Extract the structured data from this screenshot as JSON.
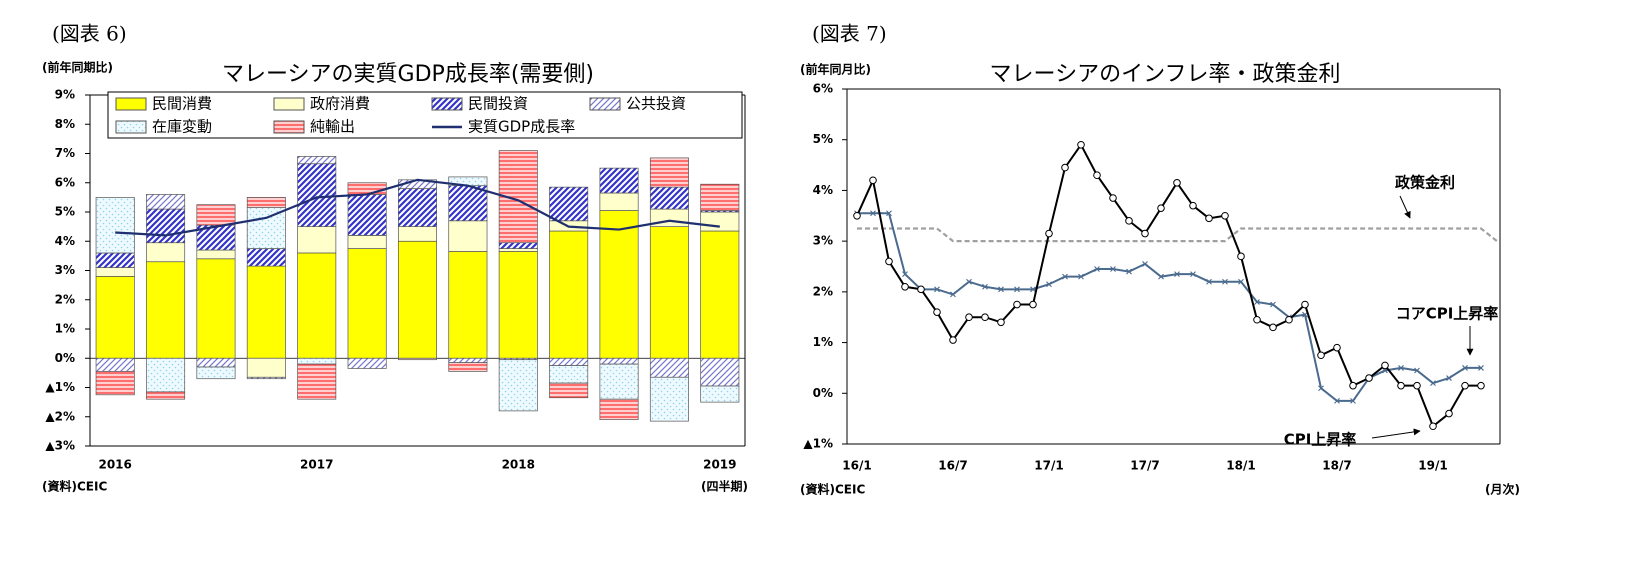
{
  "chart_data": [
    {
      "type": "bar",
      "figure_label": "(図表 6)",
      "title": "マレーシアの実質GDP成長率(需要側)",
      "unit_note": "(前年同期比)",
      "source": "(資料)CEIC",
      "x_note": "(四半期)",
      "stacked": true,
      "legend": "top",
      "categories": [
        "2016",
        null,
        null,
        null,
        "2017",
        null,
        null,
        null,
        "2018",
        null,
        null,
        null,
        "2019"
      ],
      "ylim": [
        -3,
        9
      ],
      "yticks": [
        {
          "value": 9,
          "label": "9%"
        },
        {
          "value": 8,
          "label": "8%"
        },
        {
          "value": 7,
          "label": "7%"
        },
        {
          "value": 6,
          "label": "6%"
        },
        {
          "value": 5,
          "label": "5%"
        },
        {
          "value": 4,
          "label": "4%"
        },
        {
          "value": 3,
          "label": "3%"
        },
        {
          "value": 2,
          "label": "2%"
        },
        {
          "value": 1,
          "label": "1%"
        },
        {
          "value": 0,
          "label": "0%"
        },
        {
          "value": -1,
          "label": "▲1%"
        },
        {
          "value": -2,
          "label": "▲2%"
        },
        {
          "value": -3,
          "label": "▲3%"
        }
      ],
      "series": [
        {
          "name": "民間消費",
          "type": "bar",
          "color": "#ffff00",
          "hatch": "none",
          "values": [
            2.8,
            3.3,
            3.4,
            3.15,
            3.6,
            3.75,
            4.0,
            3.65,
            3.65,
            4.35,
            5.05,
            4.5,
            4.35
          ]
        },
        {
          "name": "政府消費",
          "type": "bar",
          "color": "#ffffcc",
          "hatch": "none",
          "values": [
            0.3,
            0.65,
            0.3,
            -0.65,
            0.9,
            0.45,
            0.5,
            1.05,
            0.1,
            0.35,
            0.6,
            0.6,
            0.65
          ]
        },
        {
          "name": "民間投資",
          "type": "bar",
          "color": "#3333cc",
          "hatch": "diagonal",
          "values": [
            0.5,
            1.15,
            0.85,
            0.6,
            2.15,
            1.4,
            1.3,
            1.2,
            0.2,
            1.15,
            0.85,
            0.75,
            0.05
          ]
        },
        {
          "name": "公共投資",
          "type": "bar",
          "color": "#7777cc",
          "hatch": "diagonal-thin",
          "values": [
            -0.45,
            0.5,
            -0.3,
            -0.05,
            0.25,
            -0.35,
            0.3,
            -0.15,
            -0.05,
            -0.25,
            -0.2,
            -0.65,
            -0.95
          ]
        },
        {
          "name": "在庫変動",
          "type": "bar",
          "color": "#8fd3e8",
          "hatch": "dots",
          "values": [
            1.9,
            -1.15,
            -0.4,
            1.4,
            -0.2,
            0,
            0,
            0.3,
            -1.75,
            -0.6,
            -1.2,
            -1.5,
            -0.55
          ]
        },
        {
          "name": "純輸出",
          "type": "bar",
          "color": "#ff5555",
          "hatch": "horizontal",
          "values": [
            -0.8,
            -0.25,
            0.7,
            0.35,
            -1.2,
            0.4,
            -0.05,
            -0.3,
            3.15,
            -0.5,
            -0.7,
            1.0,
            0.9
          ]
        },
        {
          "name": "実質GDP成長率",
          "type": "line",
          "color": "#1f2f6f",
          "values": [
            4.3,
            4.2,
            4.5,
            4.8,
            5.5,
            5.6,
            6.1,
            5.9,
            5.4,
            4.5,
            4.4,
            4.7,
            4.5
          ]
        }
      ]
    },
    {
      "type": "line",
      "figure_label": "(図表 7)",
      "title": "マレーシアのインフレ率・政策金利",
      "unit_note": "(前年同月比)",
      "source": "(資料)CEIC",
      "x_note": "(月次)",
      "categories": [
        "16/1",
        null,
        null,
        null,
        null,
        null,
        "16/7",
        null,
        null,
        null,
        null,
        null,
        "17/1",
        null,
        null,
        null,
        null,
        null,
        "17/7",
        null,
        null,
        null,
        null,
        null,
        "18/1",
        null,
        null,
        null,
        null,
        null,
        "18/7",
        null,
        null,
        null,
        null,
        null,
        "19/1",
        null,
        null,
        null,
        null
      ],
      "ylim": [
        -1,
        6
      ],
      "yticks": [
        {
          "value": 6,
          "label": "6%"
        },
        {
          "value": 5,
          "label": "5%"
        },
        {
          "value": 4,
          "label": "4%"
        },
        {
          "value": 3,
          "label": "3%"
        },
        {
          "value": 2,
          "label": "2%"
        },
        {
          "value": 1,
          "label": "1%"
        },
        {
          "value": 0,
          "label": "0%"
        },
        {
          "value": -1,
          "label": "▲1%"
        }
      ],
      "series": [
        {
          "name": "政策金利",
          "color": "#a0a0a0",
          "dash": true,
          "marker": "none",
          "values": [
            3.25,
            3.25,
            3.25,
            3.25,
            3.25,
            3.25,
            3.0,
            3.0,
            3.0,
            3.0,
            3.0,
            3.0,
            3.0,
            3.0,
            3.0,
            3.0,
            3.0,
            3.0,
            3.0,
            3.0,
            3.0,
            3.0,
            3.0,
            3.0,
            3.25,
            3.25,
            3.25,
            3.25,
            3.25,
            3.25,
            3.25,
            3.25,
            3.25,
            3.25,
            3.25,
            3.25,
            3.25,
            3.25,
            3.25,
            3.25,
            3.0
          ]
        },
        {
          "name": "コアCPI上昇率",
          "color": "#4a6a8e",
          "dash": false,
          "marker": "x",
          "values": [
            3.55,
            3.55,
            3.55,
            2.35,
            2.05,
            2.05,
            1.95,
            2.2,
            2.1,
            2.05,
            2.05,
            2.05,
            2.15,
            2.3,
            2.3,
            2.45,
            2.45,
            2.4,
            2.55,
            2.3,
            2.35,
            2.35,
            2.2,
            2.2,
            2.2,
            1.8,
            1.75,
            1.5,
            1.55,
            0.1,
            -0.15,
            -0.15,
            0.3,
            0.45,
            0.5,
            0.45,
            0.2,
            0.3,
            0.5,
            0.5,
            null
          ]
        },
        {
          "name": "CPI上昇率",
          "color": "#000000",
          "dash": false,
          "marker": "circle",
          "values": [
            3.5,
            4.2,
            2.6,
            2.1,
            2.05,
            1.6,
            1.05,
            1.5,
            1.5,
            1.4,
            1.75,
            1.75,
            3.15,
            4.45,
            4.9,
            4.3,
            3.85,
            3.4,
            3.15,
            3.65,
            4.15,
            3.7,
            3.45,
            3.5,
            2.7,
            1.45,
            1.3,
            1.45,
            1.75,
            0.75,
            0.9,
            0.15,
            0.3,
            0.55,
            0.15,
            0.15,
            -0.65,
            -0.4,
            0.15,
            0.15,
            null
          ]
        }
      ]
    }
  ]
}
